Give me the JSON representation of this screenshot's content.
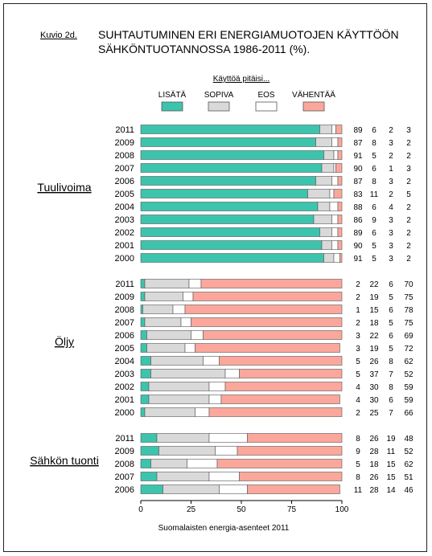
{
  "figure": {
    "label": "Kuvio 2d.",
    "title": "SUHTAUTUMINEN ERI ENERGIAMUOTOJEN KÄYTTÖÖN SÄHKÖNTUOTANNOSSA 1986-2011 (%).",
    "source": "Suomalaisten energia-asenteet 2011"
  },
  "chart_data": {
    "type": "bar",
    "orientation": "horizontal",
    "stacked": true,
    "legend_title": "Käyttöä pitäisi...",
    "legend_position": "top",
    "categories": [
      "LISÄTÄ",
      "SOPIVA",
      "EOS",
      "VÄHENTÄÄ"
    ],
    "colors": [
      "#3cc4ad",
      "#d9d9d9",
      "#ffffff",
      "#fca79c"
    ],
    "xlim": [
      0,
      100
    ],
    "xticks": [
      0,
      25,
      50,
      75,
      100
    ],
    "groups": [
      {
        "name": "Tuulivoima",
        "rows": [
          {
            "year": "2011",
            "values": [
              89,
              6,
              2,
              3
            ]
          },
          {
            "year": "2009",
            "values": [
              87,
              8,
              3,
              2
            ]
          },
          {
            "year": "2008",
            "values": [
              91,
              5,
              2,
              2
            ]
          },
          {
            "year": "2007",
            "values": [
              90,
              6,
              1,
              3
            ]
          },
          {
            "year": "2006",
            "values": [
              87,
              8,
              3,
              2
            ]
          },
          {
            "year": "2005",
            "values": [
              83,
              11,
              2,
              5
            ]
          },
          {
            "year": "2004",
            "values": [
              88,
              6,
              4,
              2
            ]
          },
          {
            "year": "2003",
            "values": [
              86,
              9,
              3,
              2
            ]
          },
          {
            "year": "2002",
            "values": [
              89,
              6,
              3,
              2
            ]
          },
          {
            "year": "2001",
            "values": [
              90,
              5,
              3,
              2
            ]
          },
          {
            "year": "2000",
            "values": [
              91,
              5,
              3,
              2
            ]
          }
        ]
      },
      {
        "name": "Öljy",
        "rows": [
          {
            "year": "2011",
            "values": [
              2,
              22,
              6,
              70
            ]
          },
          {
            "year": "2009",
            "values": [
              2,
              19,
              5,
              75
            ]
          },
          {
            "year": "2008",
            "values": [
              1,
              15,
              6,
              78
            ]
          },
          {
            "year": "2007",
            "values": [
              2,
              18,
              5,
              75
            ]
          },
          {
            "year": "2006",
            "values": [
              3,
              22,
              6,
              69
            ]
          },
          {
            "year": "2005",
            "values": [
              3,
              19,
              5,
              72
            ]
          },
          {
            "year": "2004",
            "values": [
              5,
              26,
              8,
              62
            ]
          },
          {
            "year": "2003",
            "values": [
              5,
              37,
              7,
              52
            ]
          },
          {
            "year": "2002",
            "values": [
              4,
              30,
              8,
              59
            ]
          },
          {
            "year": "2001",
            "values": [
              4,
              30,
              6,
              59
            ]
          },
          {
            "year": "2000",
            "values": [
              2,
              25,
              7,
              66
            ]
          }
        ]
      },
      {
        "name": "Sähkön tuonti",
        "rows": [
          {
            "year": "2011",
            "values": [
              8,
              26,
              19,
              48
            ]
          },
          {
            "year": "2009",
            "values": [
              9,
              28,
              11,
              52
            ]
          },
          {
            "year": "2008",
            "values": [
              5,
              18,
              15,
              62
            ]
          },
          {
            "year": "2007",
            "values": [
              8,
              26,
              15,
              51
            ]
          },
          {
            "year": "2006",
            "values": [
              11,
              28,
              14,
              46
            ]
          }
        ]
      }
    ]
  }
}
